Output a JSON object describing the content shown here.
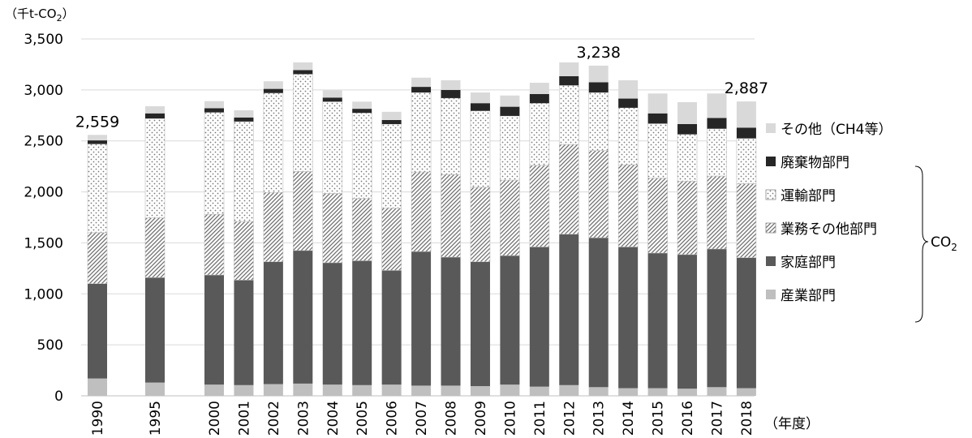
{
  "chart_data": {
    "type": "bar",
    "stacked": true,
    "y_unit_label": "（千t-CO",
    "y_unit_sub": "2",
    "y_unit_close": "）",
    "x_unit_label": "（年度）",
    "ylim": [
      0,
      3500
    ],
    "y_ticks": [
      0,
      500,
      1000,
      1500,
      2000,
      2500,
      3000,
      3500
    ],
    "y_tick_labels": [
      "0",
      "500",
      "1,000",
      "1,500",
      "2,000",
      "2,500",
      "3,000",
      "3,500"
    ],
    "grid": true,
    "categories": [
      "1990",
      "1995",
      "2000",
      "2001",
      "2002",
      "2003",
      "2004",
      "2005",
      "2006",
      "2007",
      "2008",
      "2009",
      "2010",
      "2011",
      "2012",
      "2013",
      "2014",
      "2015",
      "2016",
      "2017",
      "2018"
    ],
    "series": [
      {
        "name": "産業部門",
        "color": "#bfbfbf",
        "pattern": "solid",
        "values": [
          170,
          130,
          110,
          105,
          115,
          120,
          110,
          105,
          110,
          100,
          100,
          95,
          110,
          90,
          105,
          85,
          75,
          75,
          70,
          85,
          75
        ]
      },
      {
        "name": "家庭部門",
        "color": "#595959",
        "pattern": "solid",
        "values": [
          930,
          1030,
          1075,
          1030,
          1200,
          1305,
          1195,
          1220,
          1120,
          1315,
          1260,
          1220,
          1265,
          1370,
          1480,
          1465,
          1385,
          1325,
          1315,
          1355,
          1280
        ]
      },
      {
        "name": "業務その他部門",
        "color": "#ffffff",
        "pattern": "diag",
        "values": [
          500,
          585,
          595,
          575,
          680,
          775,
          680,
          610,
          610,
          780,
          810,
          730,
          740,
          800,
          880,
          855,
          805,
          735,
          720,
          715,
          725
        ]
      },
      {
        "name": "運輸部門",
        "color": "#ffffff",
        "pattern": "dots",
        "values": [
          870,
          975,
          1000,
          980,
          975,
          955,
          900,
          840,
          825,
          780,
          750,
          750,
          630,
          610,
          580,
          570,
          560,
          535,
          460,
          465,
          445
        ]
      },
      {
        "name": "廃棄物部門",
        "color": "#262626",
        "pattern": "solid",
        "values": [
          35,
          50,
          40,
          40,
          40,
          40,
          40,
          40,
          40,
          55,
          80,
          75,
          90,
          90,
          90,
          100,
          90,
          100,
          100,
          105,
          105
        ]
      },
      {
        "name": "その他（CH4等）",
        "color": "#d9d9d9",
        "pattern": "solid",
        "values": [
          54,
          70,
          70,
          70,
          75,
          75,
          70,
          70,
          80,
          90,
          95,
          105,
          110,
          110,
          135,
          163,
          180,
          195,
          215,
          240,
          257
        ]
      }
    ],
    "data_labels": [
      {
        "category": "1990",
        "text": "2,559"
      },
      {
        "category": "2013",
        "text": "3,238"
      },
      {
        "category": "2018",
        "text": "2,887"
      }
    ],
    "legend_position": "right",
    "legend_order": [
      "その他（CH4等）",
      "廃棄物部門",
      "運輸部門",
      "業務その他部門",
      "家庭部門",
      "産業部門"
    ],
    "bracket_label": "CO",
    "bracket_label_sub": "2"
  }
}
